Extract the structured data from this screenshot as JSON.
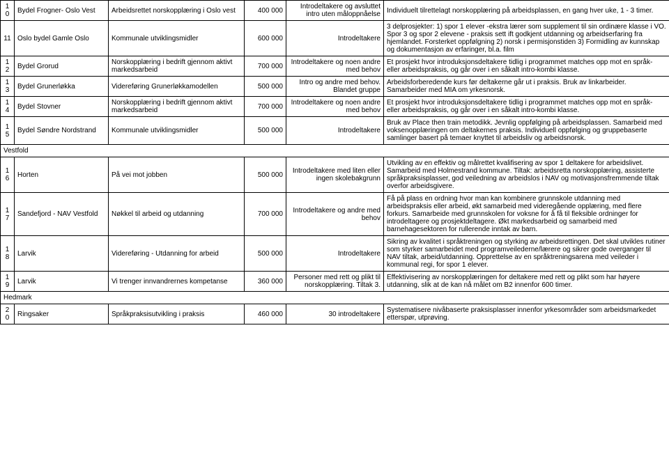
{
  "columns": {
    "widths": [
      20,
      135,
      195,
      60,
      140,
      410
    ]
  },
  "rows": [
    {
      "id": "10",
      "kommune": "Bydel Frogner- Oslo Vest",
      "tiltak": "Arbeidsrettet norskopplæring i Oslo vest",
      "belop": "400 000",
      "malgruppe": "Introdeltakere og avsluttet intro uten måloppnåelse",
      "beskrivelse": "Individuelt tilrettelagt norskopplæring på arbeidsplassen, en gang hver uke, 1 - 3 timer."
    },
    {
      "id": "11",
      "kommune": "Oslo bydel Gamle Oslo",
      "tiltak": "Kommunale utviklingsmidler",
      "belop": "600 000",
      "malgruppe": "Introdeltakere",
      "beskrivelse": "3 delprosjekter: 1) spor 1 elever -ekstra lærer som supplement til sin ordinære klasse i VO. Spor 3 og spor 2 elevene - praksis sett ift godkjent utdanning og arbeidserfaring fra hjemlandet. Forsterket oppfølgning 2) norsk i permisjonstiden 3) Formidling av kunnskap og dokumentasjon av erfaringer, bl.a. film"
    },
    {
      "id": "12",
      "kommune": "Bydel Grorud",
      "tiltak": "Norskopplæring i bedrift gjennom aktivt markedsarbeid",
      "belop": "700 000",
      "malgruppe": "Introdeltakere og noen andre med behov",
      "beskrivelse": "Et prosjekt hvor introduksjonsdeltakere tidlig i programmet matches opp mot en språk- eller arbeidspraksis, og går over i en såkalt intro-kombi klasse."
    },
    {
      "id": "13",
      "kommune": "Bydel Grunerløkka",
      "tiltak": "Videreføring Grunerløkkamodellen",
      "belop": "500 000",
      "malgruppe": "Intro og andre med behov. Blandet gruppe",
      "beskrivelse": "Arbeidsforberedende kurs før deltakerne går ut i praksis. Bruk av linkarbeider. Samarbeider med MIA om yrkesnorsk."
    },
    {
      "id": "14",
      "kommune": "Bydel Stovner",
      "tiltak": "Norskopplæring i bedrift gjennom aktivt markedsarbeid",
      "belop": "700 000",
      "malgruppe": "Introdeltakere og noen andre med behov",
      "beskrivelse": "Et prosjekt hvor introduksjonsdeltakere tidlig i programmet matches opp mot en språk- eller arbeidspraksis, og går over i en såkalt intro-kombi klasse."
    },
    {
      "id": "15",
      "kommune": "Bydel Søndre Nordstrand",
      "tiltak": "Kommunale utviklingsmidler",
      "belop": "500 000",
      "malgruppe": "Introdeltakere",
      "beskrivelse": "Bruk av Place then train metodikk. Jevnlig oppfølging på arbeidsplassen. Samarbeid med voksenopplæringen om deltakernes praksis. Individuell oppfølging og gruppebaserte samlinger basert på temaer knyttet til arbeidsliv og arbeidsnorsk."
    }
  ],
  "section1": "Vestfold",
  "rows2": [
    {
      "id": "16",
      "kommune": "Horten",
      "tiltak": "På vei mot jobben",
      "belop": "500 000",
      "malgruppe": "Introdeltakere med liten eller ingen skolebakgrunn",
      "beskrivelse": "Utvikling av en effektiv og målrettet kvalifisering av spor 1 deltakere for arbeidslivet. Samarbeid med Holmestrand kommune. Tiltak: arbeidsretta norskopplæring, assisterte språkpraksisplasser, god veiledning av arbeidslos i NAV og motivasjonsfremmende tiltak overfor arbeidsgivere."
    },
    {
      "id": "17",
      "kommune": "Sandefjord - NAV Vestfold",
      "tiltak": "Nøkkel til arbeid og utdanning",
      "belop": "700 000",
      "malgruppe": "Introdeltakere og andre med behov",
      "beskrivelse": "Få på plass en ordning hvor man kan kombinere grunnskole utdanning med arbeidspraksis eller arbeid, økt samarbeid med videregående opplæring, med flere forkurs. Samarbeide med grunnskolen for voksne for å få til fleksible ordninger for introdeltagere og prosjektdeltagere. Økt markedsarbeid og samarbeid med barnehagesektoren for rullerende inntak av barn."
    },
    {
      "id": "18",
      "kommune": "Larvik",
      "tiltak": "Videreføring - Utdanning for arbeid",
      "belop": "500 000",
      "malgruppe": "Introdeltakere",
      "beskrivelse": "Sikring av kvalitet i språktreningen og styrking av arbeidsrettingen. Det skal utvikles rutiner som styrker samarbeidet med programveilederne/lærere og sikrer gode overganger til NAV tiltak, arbeid/utdanning. Opprettelse av en språktreningsarena med veileder i kommunal regi, for spor 1 elever."
    },
    {
      "id": "19",
      "kommune": "Larvik",
      "tiltak": "Vi trenger innvandrernes kompetanse",
      "belop": "360 000",
      "malgruppe": "Personer med rett og plikt til norskopplæring. Tiltak 3.",
      "beskrivelse": "Effektivisering av norskopplæringen for deltakere med rett og plikt som har høyere utdanning, slik at de kan nå målet om B2 innenfor 600 timer."
    }
  ],
  "section2": "Hedmark",
  "rows3": [
    {
      "id": "20",
      "kommune": "Ringsaker",
      "tiltak": "Språkpraksisutvikling i praksis",
      "belop": "460 000",
      "malgruppe": "30 introdeltakere",
      "beskrivelse": "Systematisere nivåbaserte praksisplasser innenfor yrkesområder som arbeidsmarkedet etterspør, utprøving."
    }
  ]
}
